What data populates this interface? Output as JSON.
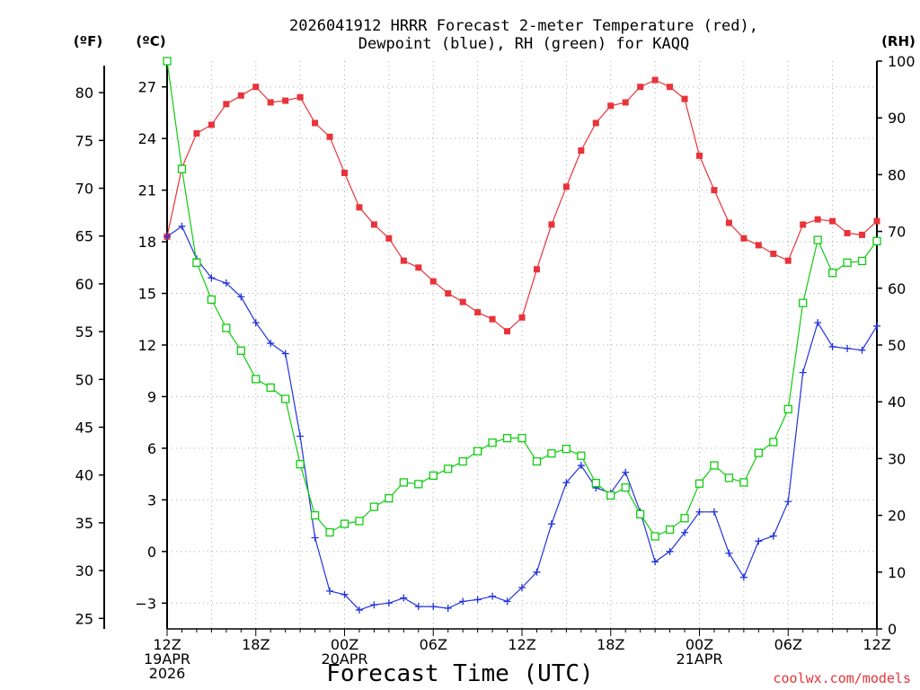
{
  "chart_data": {
    "type": "line",
    "title_line1": "2026041912 HRRR Forecast 2-meter Temperature (red),",
    "title_line2": "Dewpoint (blue), RH (green) for KAQQ",
    "xlabel": "Forecast Time (UTC)",
    "credit": "coolwx.com/models",
    "units": {
      "f": "(ºF)",
      "c": "(ºC)",
      "rh": "(RH)"
    },
    "colors": {
      "temperature": "#e8333a",
      "dewpoint": "#2233dd",
      "rh": "#11cc11"
    },
    "hours_range": [
      0,
      48
    ],
    "c_range": [
      -4.5,
      28.5
    ],
    "rh_range": [
      0,
      100
    ],
    "f_ticks": [
      25,
      30,
      35,
      40,
      45,
      50,
      55,
      60,
      65,
      70,
      75,
      80
    ],
    "c_ticks": [
      -3,
      0,
      3,
      6,
      9,
      12,
      15,
      18,
      21,
      24,
      27
    ],
    "rh_ticks": [
      0,
      10,
      20,
      30,
      40,
      50,
      60,
      70,
      80,
      90,
      100
    ],
    "x_ticks": [
      {
        "hour": 0,
        "lines": [
          "12Z",
          "19APR",
          "2026"
        ]
      },
      {
        "hour": 6,
        "lines": [
          "18Z"
        ]
      },
      {
        "hour": 12,
        "lines": [
          "00Z",
          "20APR"
        ]
      },
      {
        "hour": 18,
        "lines": [
          "06Z"
        ]
      },
      {
        "hour": 24,
        "lines": [
          "12Z"
        ]
      },
      {
        "hour": 30,
        "lines": [
          "18Z"
        ]
      },
      {
        "hour": 36,
        "lines": [
          "00Z",
          "21APR"
        ]
      },
      {
        "hour": 42,
        "lines": [
          "06Z"
        ]
      },
      {
        "hour": 48,
        "lines": [
          "12Z"
        ]
      }
    ],
    "series": [
      {
        "name": "Temperature (°C)",
        "axis": "c",
        "marker": "filled-square",
        "values": [
          18.3,
          22.3,
          24.3,
          24.8,
          26.0,
          26.5,
          27.0,
          26.1,
          26.2,
          26.4,
          24.9,
          24.1,
          22.0,
          20.0,
          19.0,
          18.2,
          16.9,
          16.5,
          15.7,
          15.0,
          14.5,
          13.9,
          13.5,
          12.8,
          13.6,
          16.4,
          19.0,
          21.2,
          23.3,
          24.9,
          25.9,
          26.1,
          27.0,
          27.4,
          27.0,
          26.3,
          23.0,
          21.0,
          19.1,
          18.2,
          17.8,
          17.3,
          16.9,
          19.0,
          19.3,
          19.2,
          18.5,
          18.4,
          19.2
        ]
      },
      {
        "name": "Dewpoint (°C)",
        "axis": "c",
        "marker": "plus",
        "values": [
          18.3,
          18.9,
          17.0,
          15.9,
          15.6,
          14.8,
          13.3,
          12.1,
          11.5,
          6.7,
          0.8,
          -2.3,
          -2.5,
          -3.4,
          -3.1,
          -3.0,
          -2.7,
          -3.2,
          -3.2,
          -3.3,
          -2.9,
          -2.8,
          -2.6,
          -2.9,
          -2.1,
          -1.2,
          1.6,
          4.0,
          5.0,
          3.7,
          3.4,
          4.6,
          2.3,
          -0.6,
          0.0,
          1.1,
          2.3,
          2.3,
          -0.1,
          -1.5,
          0.6,
          0.9,
          2.9,
          10.4,
          13.3,
          11.9,
          11.8,
          11.7,
          13.1
        ]
      },
      {
        "name": "RH (%)",
        "axis": "rh",
        "marker": "open-square",
        "values": [
          100,
          81.0,
          64.5,
          58.0,
          53.0,
          49.0,
          44.0,
          42.5,
          40.5,
          29.0,
          20.0,
          17.0,
          18.5,
          19.0,
          21.5,
          23.0,
          25.8,
          25.5,
          27.0,
          28.2,
          29.5,
          31.3,
          32.8,
          33.6,
          33.6,
          29.5,
          30.9,
          31.7,
          30.5,
          25.7,
          23.5,
          24.9,
          20.2,
          16.3,
          17.5,
          19.5,
          25.6,
          28.8,
          26.6,
          25.8,
          31.0,
          32.9,
          38.7,
          57.4,
          68.5,
          62.7,
          64.5,
          64.8,
          68.3
        ]
      }
    ]
  }
}
